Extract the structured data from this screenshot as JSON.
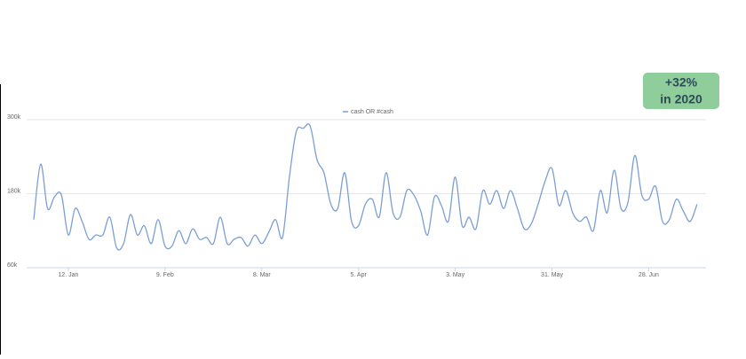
{
  "chart_data": {
    "type": "line",
    "legend": "cash OR #cash",
    "badge": {
      "value": "+32%",
      "subtitle": "in 2020",
      "color": "#8fce9b"
    },
    "categories": [
      null,
      null,
      null,
      null,
      null,
      "12. Jan",
      null,
      null,
      null,
      null,
      null,
      null,
      null,
      null,
      null,
      null,
      null,
      null,
      null,
      "9. Feb",
      null,
      null,
      null,
      null,
      null,
      null,
      null,
      null,
      null,
      null,
      null,
      null,
      null,
      "8. Mar",
      null,
      null,
      null,
      null,
      null,
      null,
      null,
      null,
      null,
      null,
      null,
      null,
      null,
      "5. Apr",
      null,
      null,
      null,
      null,
      null,
      null,
      null,
      null,
      null,
      null,
      null,
      null,
      null,
      "3. May",
      null,
      null,
      null,
      null,
      null,
      null,
      null,
      null,
      null,
      null,
      null,
      null,
      null,
      "31. May",
      null,
      null,
      null,
      null,
      null,
      null,
      null,
      null,
      null,
      null,
      null,
      null,
      null,
      "28. Jun",
      null,
      null,
      null,
      null,
      null,
      null,
      null
    ],
    "series": [
      {
        "name": "cash OR #cash",
        "color": "#7b9fd4",
        "values": [
          138000,
          228000,
          156000,
          175000,
          178000,
          113000,
          156000,
          135000,
          106000,
          113000,
          113000,
          142000,
          92000,
          99000,
          146000,
          113000,
          128000,
          99000,
          138000,
          95000,
          95000,
          120000,
          99000,
          123000,
          106000,
          109000,
          99000,
          142000,
          99000,
          106000,
          109000,
          95000,
          113000,
          99000,
          117000,
          138000,
          109000,
          207000,
          281000,
          286000,
          290000,
          235000,
          214000,
          163000,
          156000,
          214000,
          135000,
          128000,
          163000,
          171000,
          142000,
          214000,
          149000,
          142000,
          185000,
          178000,
          152000,
          113000,
          175000,
          161000,
          135000,
          207000,
          128000,
          142000,
          123000,
          185000,
          163000,
          185000,
          156000,
          185000,
          156000,
          123000,
          131000,
          163000,
          200000,
          221000,
          161000,
          185000,
          149000,
          135000,
          142000,
          120000,
          185000,
          149000,
          218000,
          156000,
          166000,
          242000,
          178000,
          171000,
          192000,
          135000,
          138000,
          171000,
          152000,
          135000,
          163000
        ]
      }
    ],
    "ylim": [
      60000,
      300000
    ],
    "yticks": [
      {
        "value": 60000,
        "label": "60k"
      },
      {
        "value": 180000,
        "label": "180k"
      },
      {
        "value": 300000,
        "label": "300k"
      }
    ],
    "grid": true
  }
}
